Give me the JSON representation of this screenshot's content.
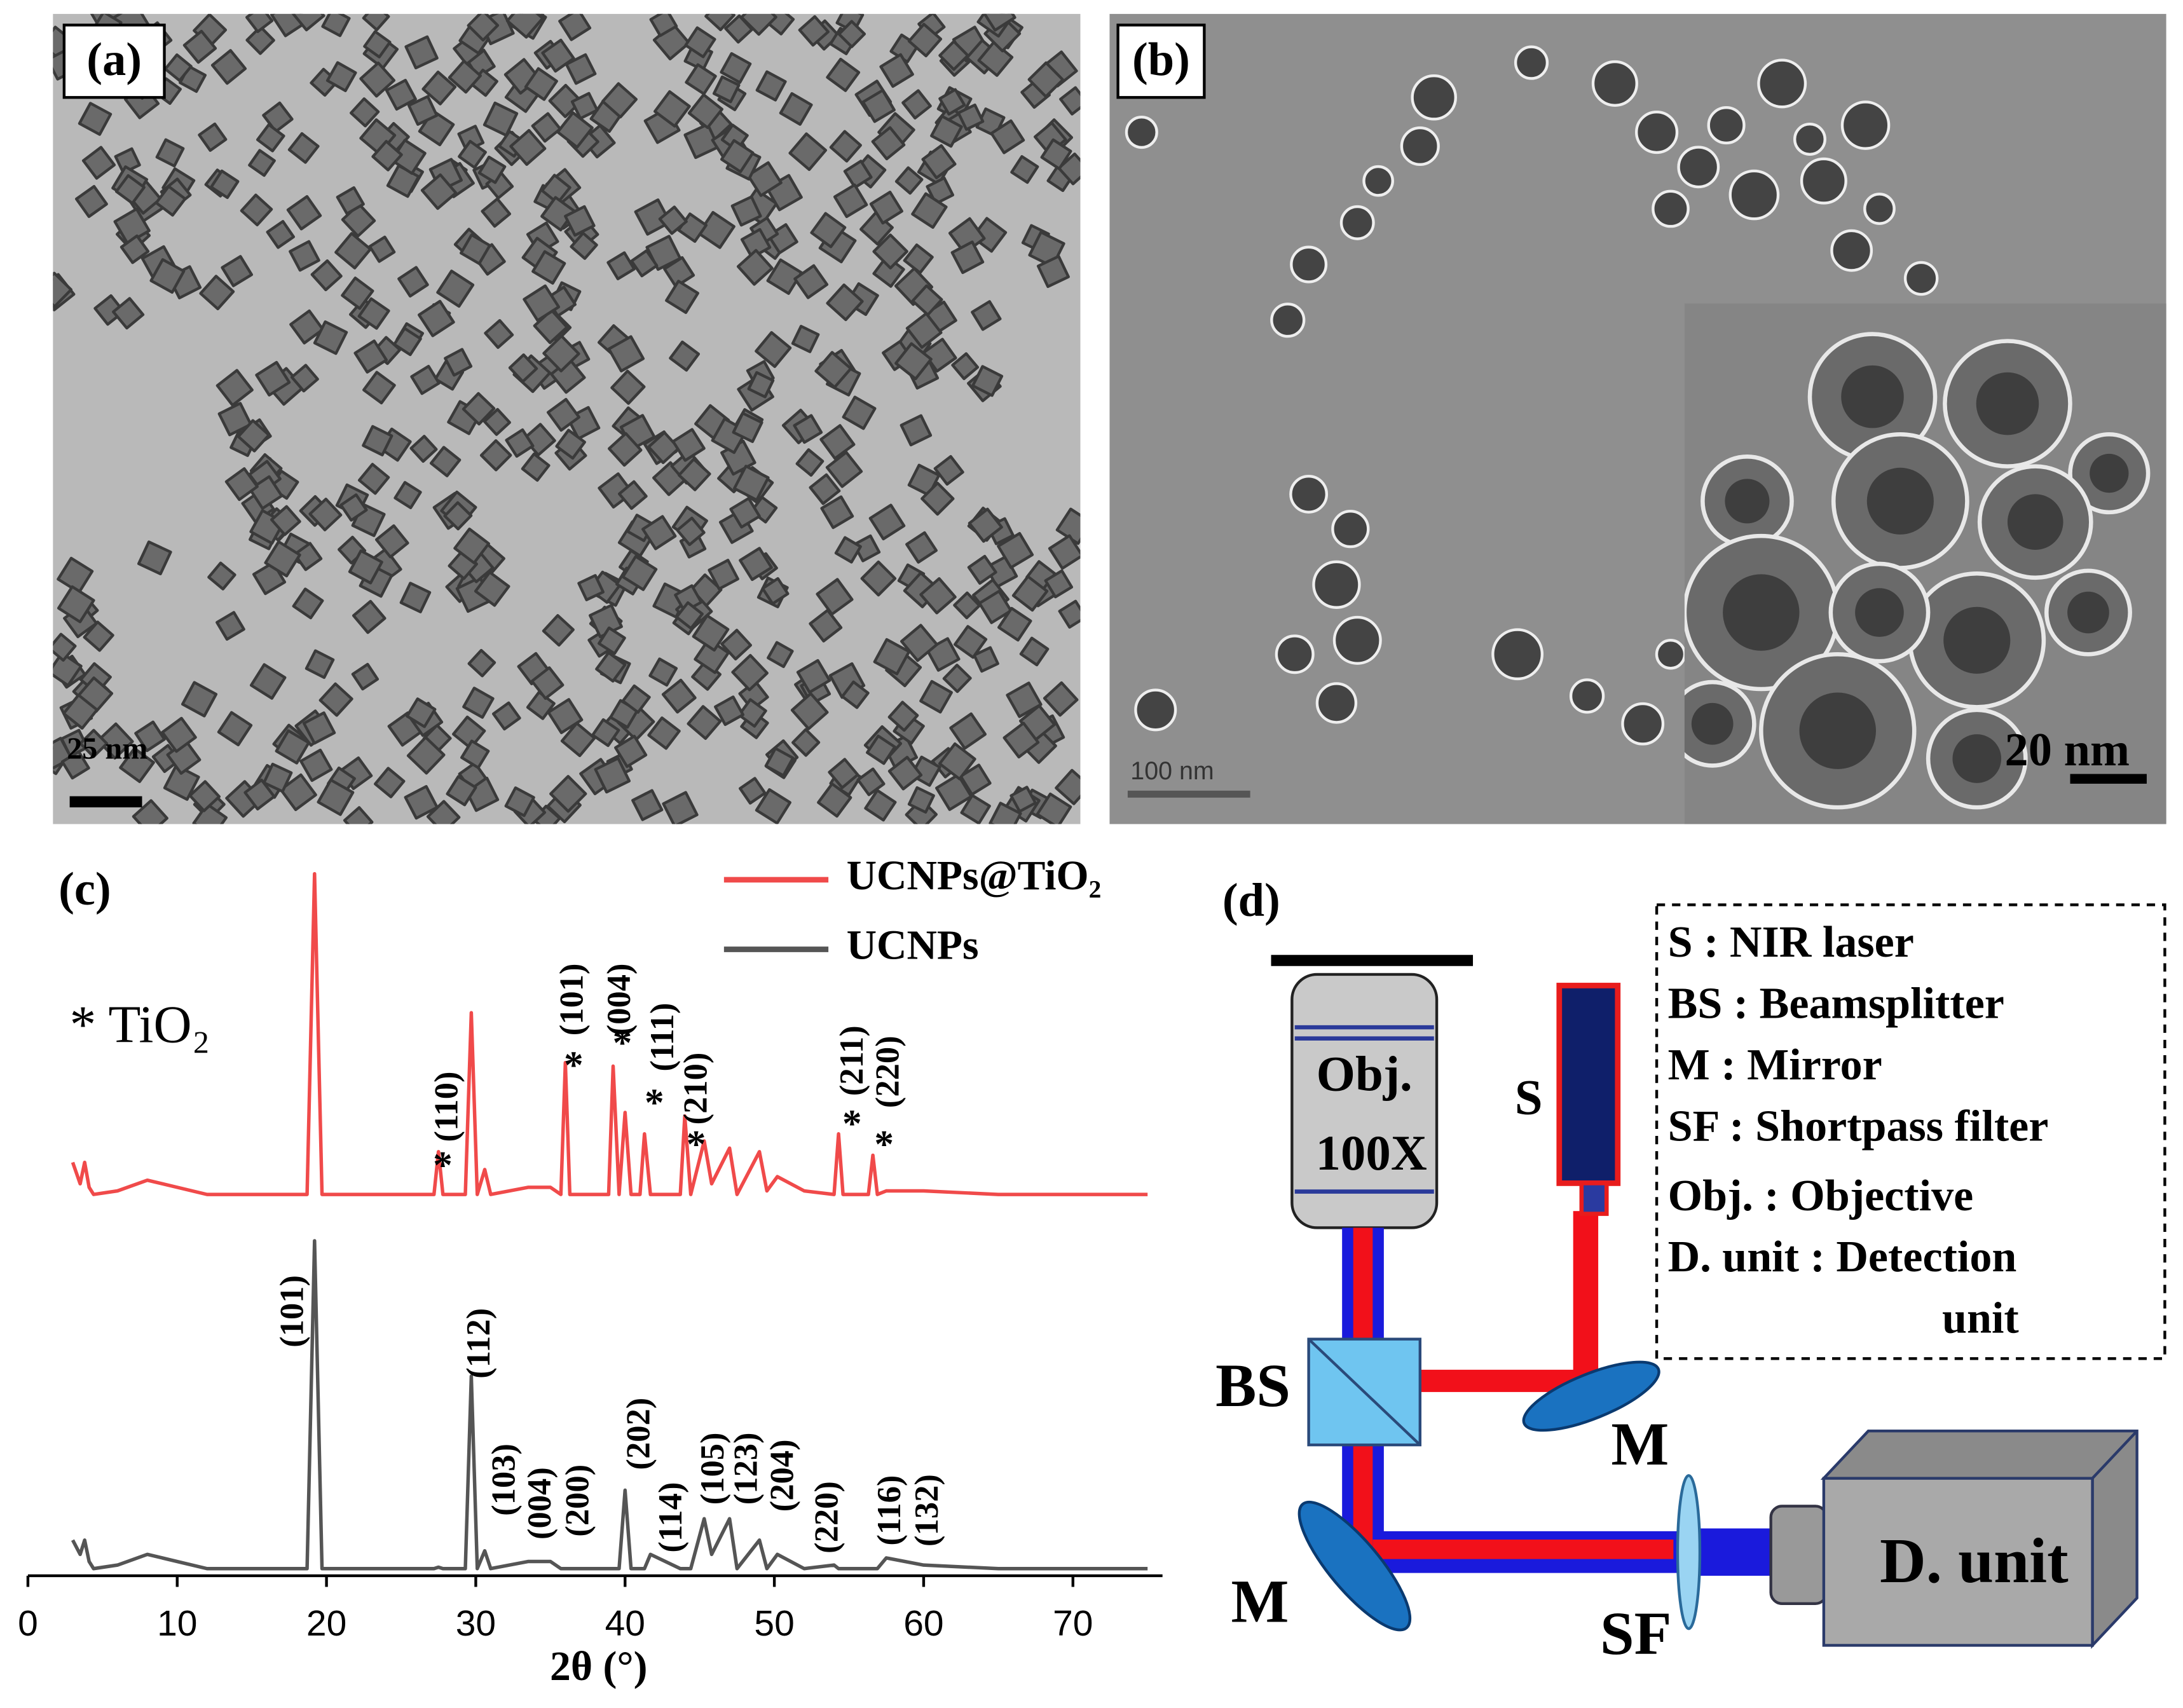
{
  "panels": {
    "a": {
      "label": "(a)",
      "scale_bar": "25 nm"
    },
    "b": {
      "label": "(b)",
      "scale_bar": "100 nm",
      "inset_scale_bar": "20 nm"
    },
    "c": {
      "label": "(c)"
    },
    "d": {
      "label": "(d)",
      "objective": [
        "Obj.",
        "100X"
      ],
      "source": "S",
      "beamsplitter": "BS",
      "mirrors": [
        "M",
        "M"
      ],
      "filter": "SF",
      "detector": "D. unit",
      "key": [
        "S : NIR laser",
        "BS : Beamsplitter",
        "M : Mirror",
        "SF : Shortpass filter",
        "Obj. : Objective",
        "D. unit : Detection",
        "unit"
      ]
    }
  },
  "chart_data": {
    "type": "line",
    "x_label": "2θ (°)",
    "side_note": "* TiO₂",
    "x": [
      3,
      3.5,
      3.8,
      4.1,
      4.4,
      6,
      8,
      10,
      12,
      16,
      18.7,
      19.2,
      19.7,
      22,
      26,
      27.2,
      27.5,
      27.8,
      29.3,
      29.7,
      30.1,
      30.6,
      31,
      33.5,
      35,
      35.7,
      36,
      36.3,
      38.9,
      39.2,
      39.6,
      40,
      40.4,
      41,
      41.3,
      41.7,
      43.7,
      44,
      44.4,
      45.3,
      45.8,
      47,
      47.5,
      49,
      49.5,
      50.2,
      52,
      54,
      54.3,
      54.6,
      56.3,
      56.6,
      56.9,
      57.5,
      60,
      65,
      70,
      75
    ],
    "xlim": [
      0,
      76
    ],
    "xticks": [
      0,
      10,
      20,
      30,
      40,
      50,
      60,
      70
    ],
    "ylim": [
      0,
      100
    ],
    "series": [
      {
        "name": "UCNPs@TiO₂",
        "color": "#f04a4a",
        "peak_marker": "*",
        "peak_labels": [
          "(110)",
          "(101)",
          "(004)",
          "(111)",
          "(210)",
          "(211)",
          "(220)"
        ],
        "values": [
          58,
          55,
          58,
          54.5,
          53.5,
          54,
          55.5,
          54.5,
          53.5,
          53.5,
          53.5,
          98.5,
          53.5,
          53.5,
          53.5,
          53.5,
          59.5,
          53.5,
          53.5,
          79,
          53.5,
          57,
          53.5,
          54.5,
          54.5,
          53.5,
          72,
          53.5,
          53.5,
          71.5,
          53.5,
          65,
          53.5,
          53.5,
          62,
          53.5,
          53.5,
          64.5,
          53.5,
          61,
          55,
          60,
          53.5,
          59.5,
          54,
          56,
          54,
          53.5,
          62,
          53.5,
          53.5,
          59,
          53.5,
          54,
          54,
          53.5,
          53.5,
          53.5
        ]
      },
      {
        "name": "UCNPs",
        "color": "#555555",
        "peak_labels": [
          "(101)",
          "(112)",
          "(103)",
          "(004)",
          "(200)",
          "(202)",
          "(114)",
          "(105)",
          "(123)",
          "(204)",
          "(220)",
          "(116)",
          "(132)"
        ],
        "values": [
          5,
          3,
          5,
          2,
          1,
          1.5,
          3,
          2,
          1,
          1,
          1,
          47,
          1,
          1,
          1,
          1,
          1.2,
          1,
          1,
          28,
          1,
          3.5,
          1,
          2,
          2,
          1,
          1,
          1,
          1,
          1,
          1,
          12,
          1,
          1,
          1,
          3,
          1,
          1,
          1,
          8,
          3,
          8,
          1,
          5,
          1,
          3,
          1,
          1.5,
          1,
          1,
          1,
          1,
          1,
          2.5,
          1.5,
          1,
          1,
          1
        ]
      }
    ]
  }
}
